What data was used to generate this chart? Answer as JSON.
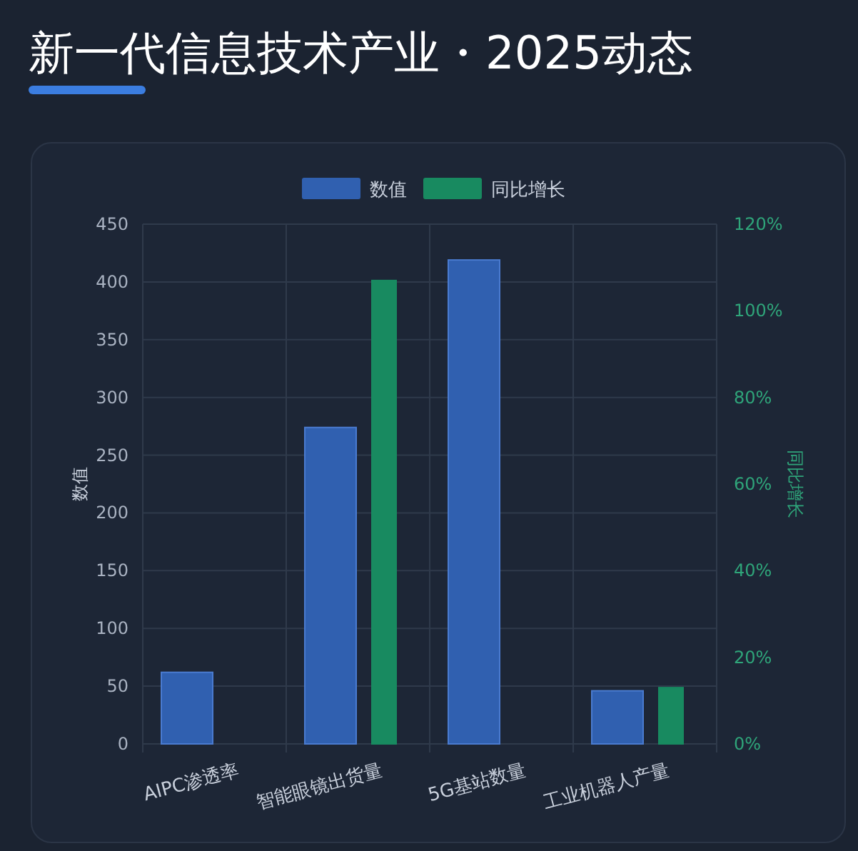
{
  "chart_data": {
    "type": "bar",
    "title": "新一代信息技术产业・2025动态",
    "categories": [
      "AIPC渗透率",
      "智能眼镜出货量",
      "5G基站数量",
      "工业机器人产量"
    ],
    "series": [
      {
        "name": "数值",
        "color": "#3060b0",
        "values": [
          62,
          274,
          419,
          46
        ]
      },
      {
        "name": "同比增长",
        "color": "#188a60",
        "axis": "y2",
        "values": [
          null,
          107,
          null,
          13
        ]
      }
    ],
    "ylabel": "数值",
    "y2label": "同比增长",
    "ylim": [
      0,
      450
    ],
    "yticks": [
      0,
      50,
      100,
      150,
      200,
      250,
      300,
      350,
      400,
      450
    ],
    "y2lim": [
      0,
      120
    ],
    "y2ticks": [
      {
        "value": 0,
        "label": "0%"
      },
      {
        "value": 20,
        "label": "20%"
      },
      {
        "value": 40,
        "label": "40%"
      },
      {
        "value": 60,
        "label": "60%"
      },
      {
        "value": 80,
        "label": "80%"
      },
      {
        "value": 100,
        "label": "100%"
      },
      {
        "value": 120,
        "label": "120%"
      }
    ],
    "grid": true,
    "legend": "top"
  }
}
